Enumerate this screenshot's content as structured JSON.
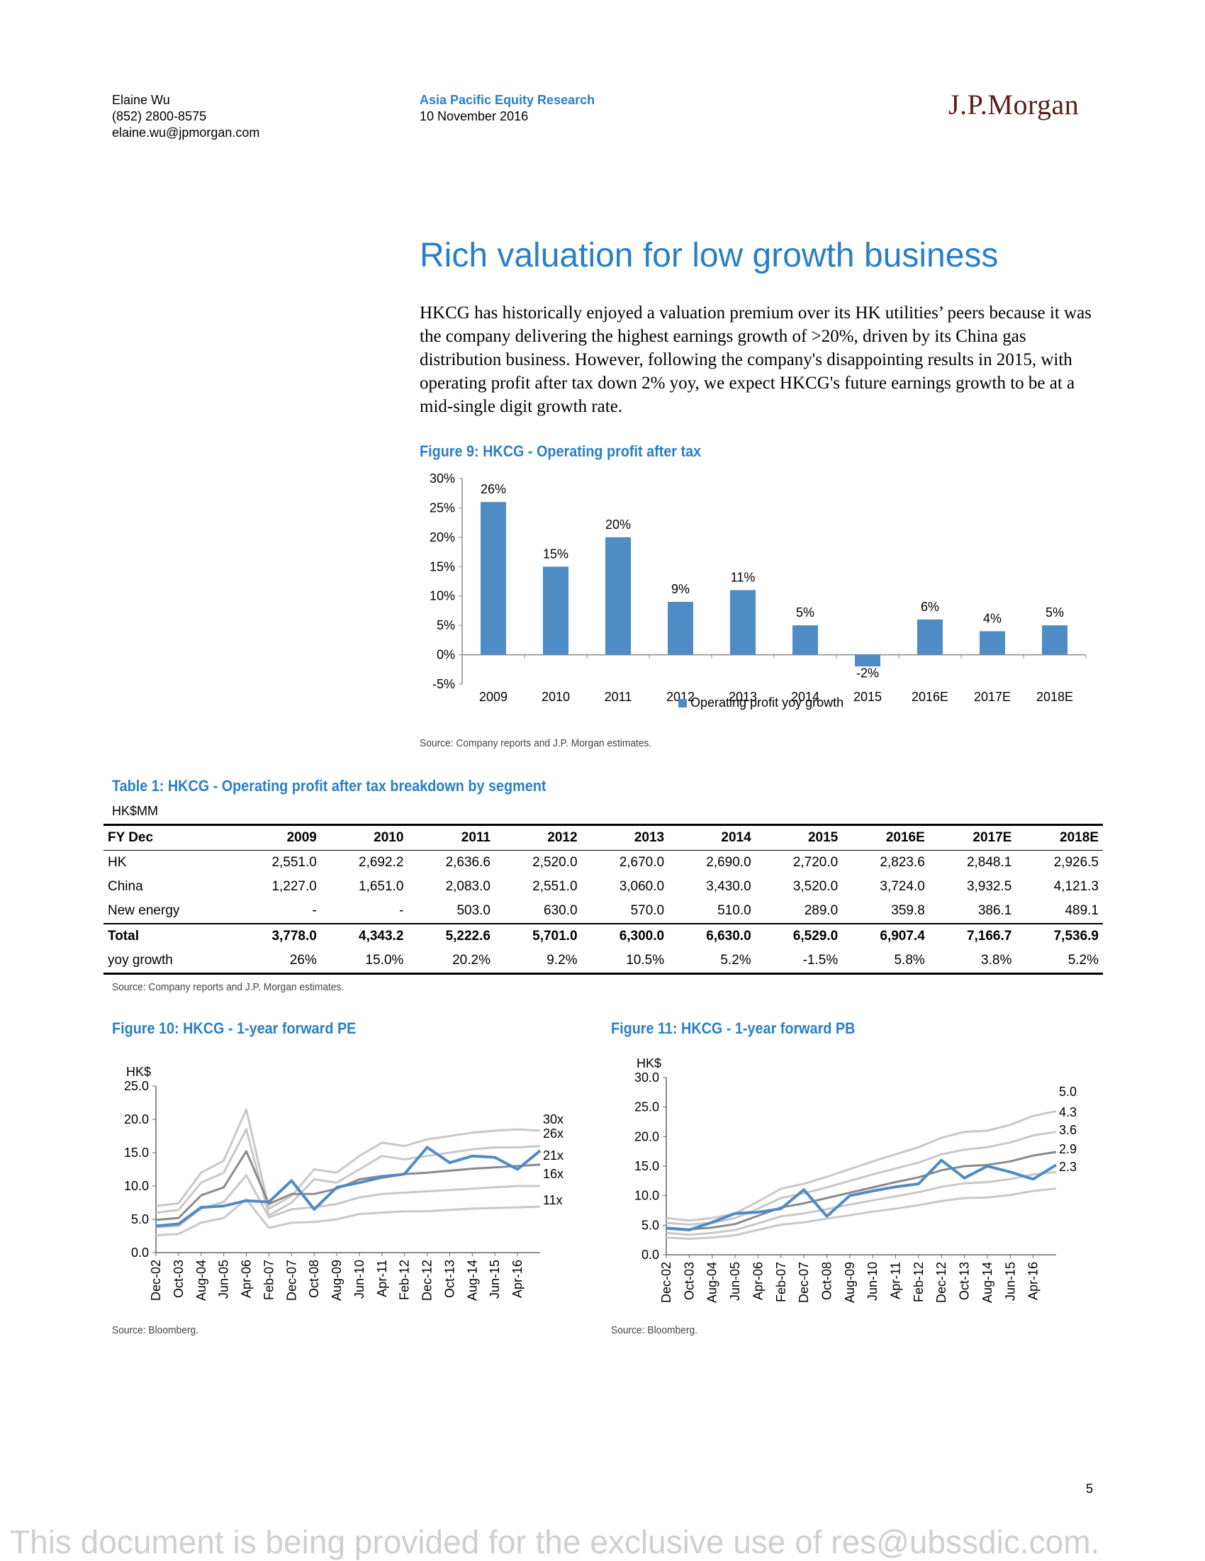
{
  "header": {
    "author_name": "Elaine Wu",
    "author_phone": "(852) 2800-8575",
    "author_email": "elaine.wu@jpmorgan.com",
    "publication": "Asia Pacific Equity Research",
    "date": "10 November 2016",
    "logo_text": "J.P.Morgan"
  },
  "section": {
    "title": "Rich valuation for low growth business",
    "paragraph": "HKCG has historically enjoyed a valuation premium over its HK utilities’ peers because it was the company delivering the highest earnings growth of >20%, driven by its China gas distribution business. However, following the company's disappointing results in 2015, with operating profit after tax down 2% yoy, we expect HKCG's future earnings growth to be at a mid-single digit growth rate."
  },
  "figure9": {
    "title": "Figure 9: HKCG - Operating profit after tax",
    "source": "Source: Company reports and J.P. Morgan estimates.",
    "color": "#4f8bc4",
    "chart_data": {
      "type": "bar",
      "categories": [
        "2009",
        "2010",
        "2011",
        "2012",
        "2013",
        "2014",
        "2015",
        "2016E",
        "2017E",
        "2018E"
      ],
      "series": [
        {
          "name": "Operating profit yoy growth",
          "values": [
            26,
            15,
            20,
            9,
            11,
            5,
            -2,
            6,
            4,
            5
          ]
        }
      ],
      "data_labels": [
        "26%",
        "15%",
        "20%",
        "9%",
        "11%",
        "5%",
        "-2%",
        "6%",
        "4%",
        "5%"
      ],
      "y_ticks": [
        "30%",
        "25%",
        "20%",
        "15%",
        "10%",
        "5%",
        "0%",
        "-5%"
      ],
      "ylim": [
        -5,
        30
      ],
      "legend": "bottom"
    }
  },
  "table1": {
    "title": "Table 1: HKCG - Operating profit after tax breakdown by segment",
    "unit": "HK$MM",
    "columns": [
      "FY Dec",
      "2009",
      "2010",
      "2011",
      "2012",
      "2013",
      "2014",
      "2015",
      "2016E",
      "2017E",
      "2018E"
    ],
    "rows": [
      [
        "HK",
        "2,551.0",
        "2,692.2",
        "2,636.6",
        "2,520.0",
        "2,670.0",
        "2,690.0",
        "2,720.0",
        "2,823.6",
        "2,848.1",
        "2,926.5"
      ],
      [
        "China",
        "1,227.0",
        "1,651.0",
        "2,083.0",
        "2,551.0",
        "3,060.0",
        "3,430.0",
        "3,520.0",
        "3,724.0",
        "3,932.5",
        "4,121.3"
      ],
      [
        "New energy",
        "-",
        "-",
        "503.0",
        "630.0",
        "570.0",
        "510.0",
        "289.0",
        "359.8",
        "386.1",
        "489.1"
      ],
      [
        "Total",
        "3,778.0",
        "4,343.2",
        "5,222.6",
        "5,701.0",
        "6,300.0",
        "6,630.0",
        "6,529.0",
        "6,907.4",
        "7,166.7",
        "7,536.9"
      ],
      [
        "yoy growth",
        "26%",
        "15.0%",
        "20.2%",
        "9.2%",
        "10.5%",
        "5.2%",
        "-1.5%",
        "5.8%",
        "3.8%",
        "5.2%"
      ]
    ],
    "source": "Source: Company reports and J.P. Morgan estimates."
  },
  "figure10": {
    "title": "Figure 10: HKCG - 1-year forward PE",
    "source": "Source: Bloomberg.",
    "chart_data": {
      "type": "line",
      "ylabel": "HK$",
      "ylim": [
        0,
        25
      ],
      "y_ticks": [
        "25.0",
        "20.0",
        "15.0",
        "10.0",
        "5.0",
        "0.0"
      ],
      "x_ticks": [
        "Dec-02",
        "Oct-03",
        "Aug-04",
        "Jun-05",
        "Apr-06",
        "Feb-07",
        "Dec-07",
        "Oct-08",
        "Aug-09",
        "Jun-10",
        "Apr-11",
        "Feb-12",
        "Dec-12",
        "Oct-13",
        "Aug-14",
        "Jun-15",
        "Apr-16"
      ],
      "x_index": [
        0,
        1,
        2,
        3,
        4,
        5,
        6,
        7,
        8,
        9,
        10,
        11,
        12,
        13,
        14,
        15,
        16,
        17
      ],
      "band_labels": [
        "30x",
        "26x",
        "21x",
        "16x",
        "11x"
      ],
      "series": [
        {
          "values": [
            7.0,
            7.4,
            12.0,
            13.8,
            21.5,
            6.6,
            8.5,
            12.5,
            12.0,
            14.5,
            16.5,
            16.0,
            17.0,
            17.5,
            18.0,
            18.3,
            18.5,
            18.3
          ],
          "color": "#c8c8c8"
        },
        {
          "values": [
            6.0,
            6.4,
            10.5,
            12.0,
            18.5,
            5.6,
            7.5,
            11.0,
            10.5,
            12.5,
            14.5,
            14.0,
            14.5,
            15.0,
            15.5,
            15.8,
            15.8,
            16.0
          ],
          "color": "#c8c8c8"
        },
        {
          "values": [
            4.9,
            5.2,
            8.6,
            9.8,
            15.2,
            7.3,
            8.8,
            8.8,
            9.6,
            11.0,
            11.5,
            11.8,
            12.0,
            12.3,
            12.6,
            12.8,
            13.0,
            13.2
          ],
          "color": "#8a8a8a"
        },
        {
          "values": [
            3.8,
            4.0,
            6.6,
            7.6,
            11.6,
            5.3,
            6.5,
            6.8,
            7.3,
            8.3,
            8.8,
            9.0,
            9.2,
            9.4,
            9.6,
            9.8,
            10.0,
            10.0
          ],
          "color": "#c8c8c8"
        },
        {
          "values": [
            2.6,
            2.8,
            4.5,
            5.2,
            8.0,
            3.7,
            4.5,
            4.6,
            5.0,
            5.8,
            6.0,
            6.2,
            6.2,
            6.4,
            6.6,
            6.7,
            6.8,
            6.9
          ],
          "color": "#c8c8c8"
        },
        {
          "values": [
            4.0,
            4.3,
            6.8,
            7.0,
            7.8,
            7.6,
            10.8,
            6.5,
            9.8,
            10.5,
            11.3,
            11.8,
            15.8,
            13.5,
            14.5,
            14.3,
            12.5,
            15.3
          ],
          "color": "#4f8bc4"
        }
      ]
    }
  },
  "figure11": {
    "title": "Figure 11: HKCG - 1-year forward PB",
    "source": "Source: Bloomberg.",
    "chart_data": {
      "type": "line",
      "ylabel": "HK$",
      "ylim": [
        0,
        30
      ],
      "y_ticks": [
        "30.0",
        "25.0",
        "20.0",
        "15.0",
        "10.0",
        "5.0",
        "0.0"
      ],
      "x_ticks": [
        "Dec-02",
        "Oct-03",
        "Aug-04",
        "Jun-05",
        "Apr-06",
        "Feb-07",
        "Dec-07",
        "Oct-08",
        "Aug-09",
        "Jun-10",
        "Apr-11",
        "Feb-12",
        "Dec-12",
        "Oct-13",
        "Aug-14",
        "Jun-15",
        "Apr-16"
      ],
      "x_index": [
        0,
        1,
        2,
        3,
        4,
        5,
        6,
        7,
        8,
        9,
        10,
        11,
        12,
        13,
        14,
        15,
        16,
        17
      ],
      "band_labels": [
        "5.0x",
        "4.3x",
        "3.6x",
        "2.9x",
        "2.3x"
      ],
      "series": [
        {
          "values": [
            6.2,
            5.8,
            6.2,
            7.0,
            9.0,
            11.2,
            12.0,
            13.2,
            14.5,
            15.8,
            17.0,
            18.2,
            19.8,
            20.8,
            21.0,
            22.0,
            23.5,
            24.3
          ],
          "color": "#c8c8c8"
        },
        {
          "values": [
            5.4,
            5.1,
            5.4,
            6.2,
            7.8,
            9.6,
            10.4,
            11.4,
            12.5,
            13.6,
            14.6,
            15.6,
            17.0,
            17.8,
            18.2,
            19.0,
            20.2,
            20.8
          ],
          "color": "#c8c8c8"
        },
        {
          "values": [
            4.6,
            4.3,
            4.6,
            5.2,
            6.6,
            8.0,
            8.7,
            9.6,
            10.5,
            11.4,
            12.3,
            13.1,
            14.3,
            15.0,
            15.2,
            15.8,
            16.8,
            17.4
          ],
          "color": "#8a8a8a"
        },
        {
          "values": [
            3.7,
            3.4,
            3.7,
            4.2,
            5.3,
            6.5,
            7.0,
            7.7,
            8.5,
            9.2,
            9.9,
            10.6,
            11.5,
            12.1,
            12.3,
            12.8,
            13.6,
            14.0
          ],
          "color": "#c8c8c8"
        },
        {
          "values": [
            2.9,
            2.7,
            2.9,
            3.3,
            4.2,
            5.1,
            5.5,
            6.1,
            6.7,
            7.3,
            7.8,
            8.4,
            9.1,
            9.6,
            9.7,
            10.1,
            10.8,
            11.2
          ],
          "color": "#c8c8c8"
        },
        {
          "values": [
            4.5,
            4.2,
            5.5,
            7.0,
            7.2,
            7.8,
            11.0,
            6.5,
            10.0,
            10.8,
            11.5,
            12.0,
            16.0,
            13.0,
            15.0,
            14.0,
            12.8,
            15.2
          ],
          "color": "#4f8bc4"
        }
      ]
    }
  },
  "page_number": "5",
  "footer_note": "This document is being provided for the exclusive use of res@ubssdic.com."
}
